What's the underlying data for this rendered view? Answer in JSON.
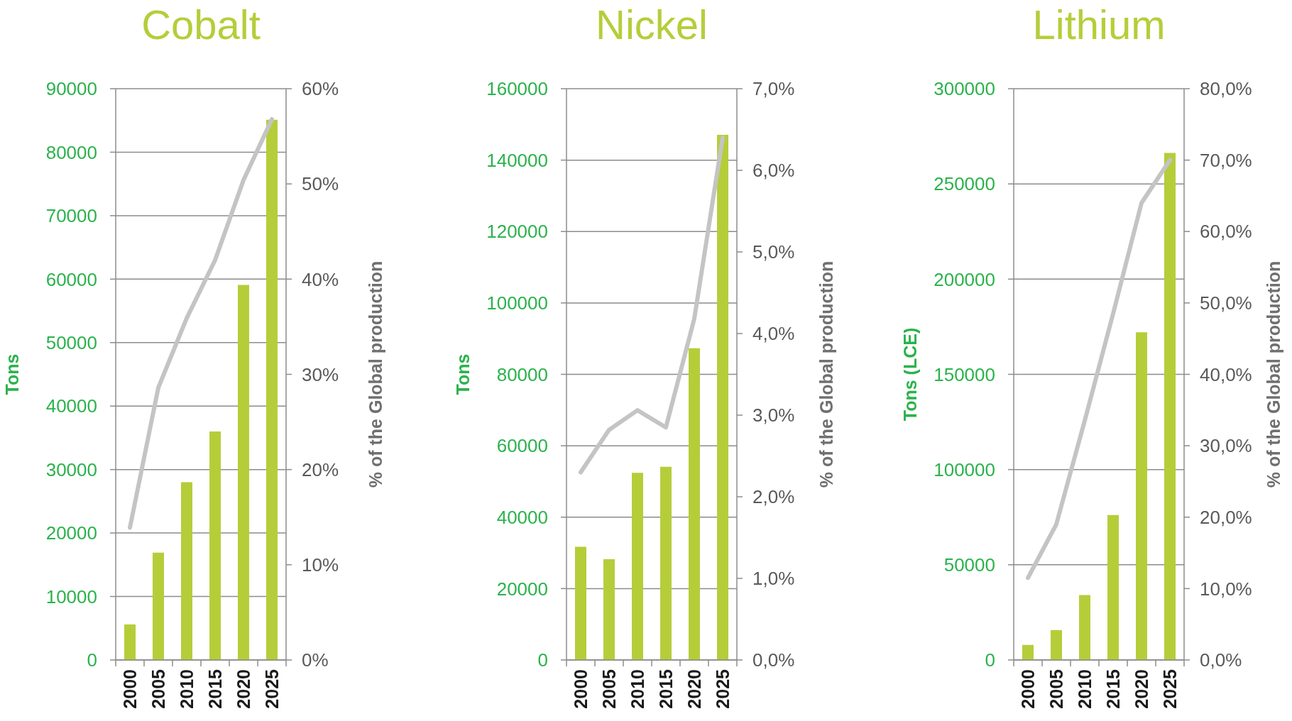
{
  "chart_data": [
    {
      "type": "bar",
      "title": "Cobalt",
      "ylabel": "Tons",
      "y2label": "% of the Global production",
      "categories": [
        "2000",
        "2005",
        "2010",
        "2015",
        "2020",
        "2025"
      ],
      "series": [
        {
          "color": "#b6cd3a",
          "values": [
            5600,
            16900,
            28000,
            36000,
            59100,
            85100
          ]
        },
        {
          "type": "line",
          "axis": "y2",
          "color": "#c4c4c4",
          "values": [
            13.9,
            28.6,
            35.9,
            42,
            50.4,
            56.8
          ]
        }
      ],
      "ylim": [
        0,
        90000
      ],
      "yticks": [
        0,
        10000,
        20000,
        30000,
        40000,
        50000,
        60000,
        70000,
        80000,
        90000
      ],
      "y2lim": [
        0,
        60
      ],
      "y2ticks": [
        {
          "value": 0,
          "label": "0%"
        },
        {
          "value": 10,
          "label": "10%"
        },
        {
          "value": 20,
          "label": "20%"
        },
        {
          "value": 30,
          "label": "30%"
        },
        {
          "value": 40,
          "label": "40%"
        },
        {
          "value": 50,
          "label": "50%"
        },
        {
          "value": 60,
          "label": "60%"
        }
      ],
      "grid": "y",
      "marker": "none"
    },
    {
      "type": "bar",
      "title": "Nickel",
      "ylabel": "Tons",
      "y2label": "% of the Global production",
      "categories": [
        "2000",
        "2005",
        "2010",
        "2015",
        "2020",
        "2025"
      ],
      "series": [
        {
          "color": "#b6cd3a",
          "values": [
            31700,
            28200,
            52400,
            54100,
            87300,
            147100
          ]
        },
        {
          "type": "line",
          "axis": "y2",
          "color": "#c4c4c4",
          "values": [
            2.3,
            2.82,
            3.06,
            2.85,
            4.18,
            6.4
          ]
        }
      ],
      "ylim": [
        0,
        160000
      ],
      "yticks": [
        0,
        20000,
        40000,
        60000,
        80000,
        100000,
        120000,
        140000,
        160000
      ],
      "y2lim": [
        0,
        7
      ],
      "y2ticks": [
        {
          "value": 0,
          "label": "0,0%"
        },
        {
          "value": 1,
          "label": "1,0%"
        },
        {
          "value": 2,
          "label": "2,0%"
        },
        {
          "value": 3,
          "label": "3,0%"
        },
        {
          "value": 4,
          "label": "4,0%"
        },
        {
          "value": 5,
          "label": "5,0%"
        },
        {
          "value": 6,
          "label": "6,0%"
        },
        {
          "value": 7,
          "label": "7,0%"
        }
      ],
      "grid": "y",
      "marker": "none"
    },
    {
      "type": "bar",
      "title": "Lithium",
      "ylabel": "Tons (LCE)",
      "y2label": "% of the Global production",
      "categories": [
        "2000",
        "2005",
        "2010",
        "2015",
        "2020",
        "2025"
      ],
      "series": [
        {
          "color": "#b6cd3a",
          "values": [
            7900,
            15700,
            34100,
            76100,
            172100,
            266300
          ]
        },
        {
          "type": "line",
          "axis": "y2",
          "color": "#c4c4c4",
          "values": [
            11.5,
            19,
            33.5,
            48.5,
            64,
            70
          ]
        }
      ],
      "ylim": [
        0,
        300000
      ],
      "yticks": [
        0,
        50000,
        100000,
        150000,
        200000,
        250000,
        300000
      ],
      "y2lim": [
        0,
        80
      ],
      "y2ticks": [
        {
          "value": 0,
          "label": "0,0%"
        },
        {
          "value": 10,
          "label": "10,0%"
        },
        {
          "value": 20,
          "label": "20,0%"
        },
        {
          "value": 30,
          "label": "30,0%"
        },
        {
          "value": 40,
          "label": "40,0%"
        },
        {
          "value": 50,
          "label": "50,0%"
        },
        {
          "value": 60,
          "label": "60,0%"
        },
        {
          "value": 70,
          "label": "70,0%"
        },
        {
          "value": 80,
          "label": "80,0%"
        }
      ],
      "grid": "y",
      "marker": "none"
    }
  ]
}
